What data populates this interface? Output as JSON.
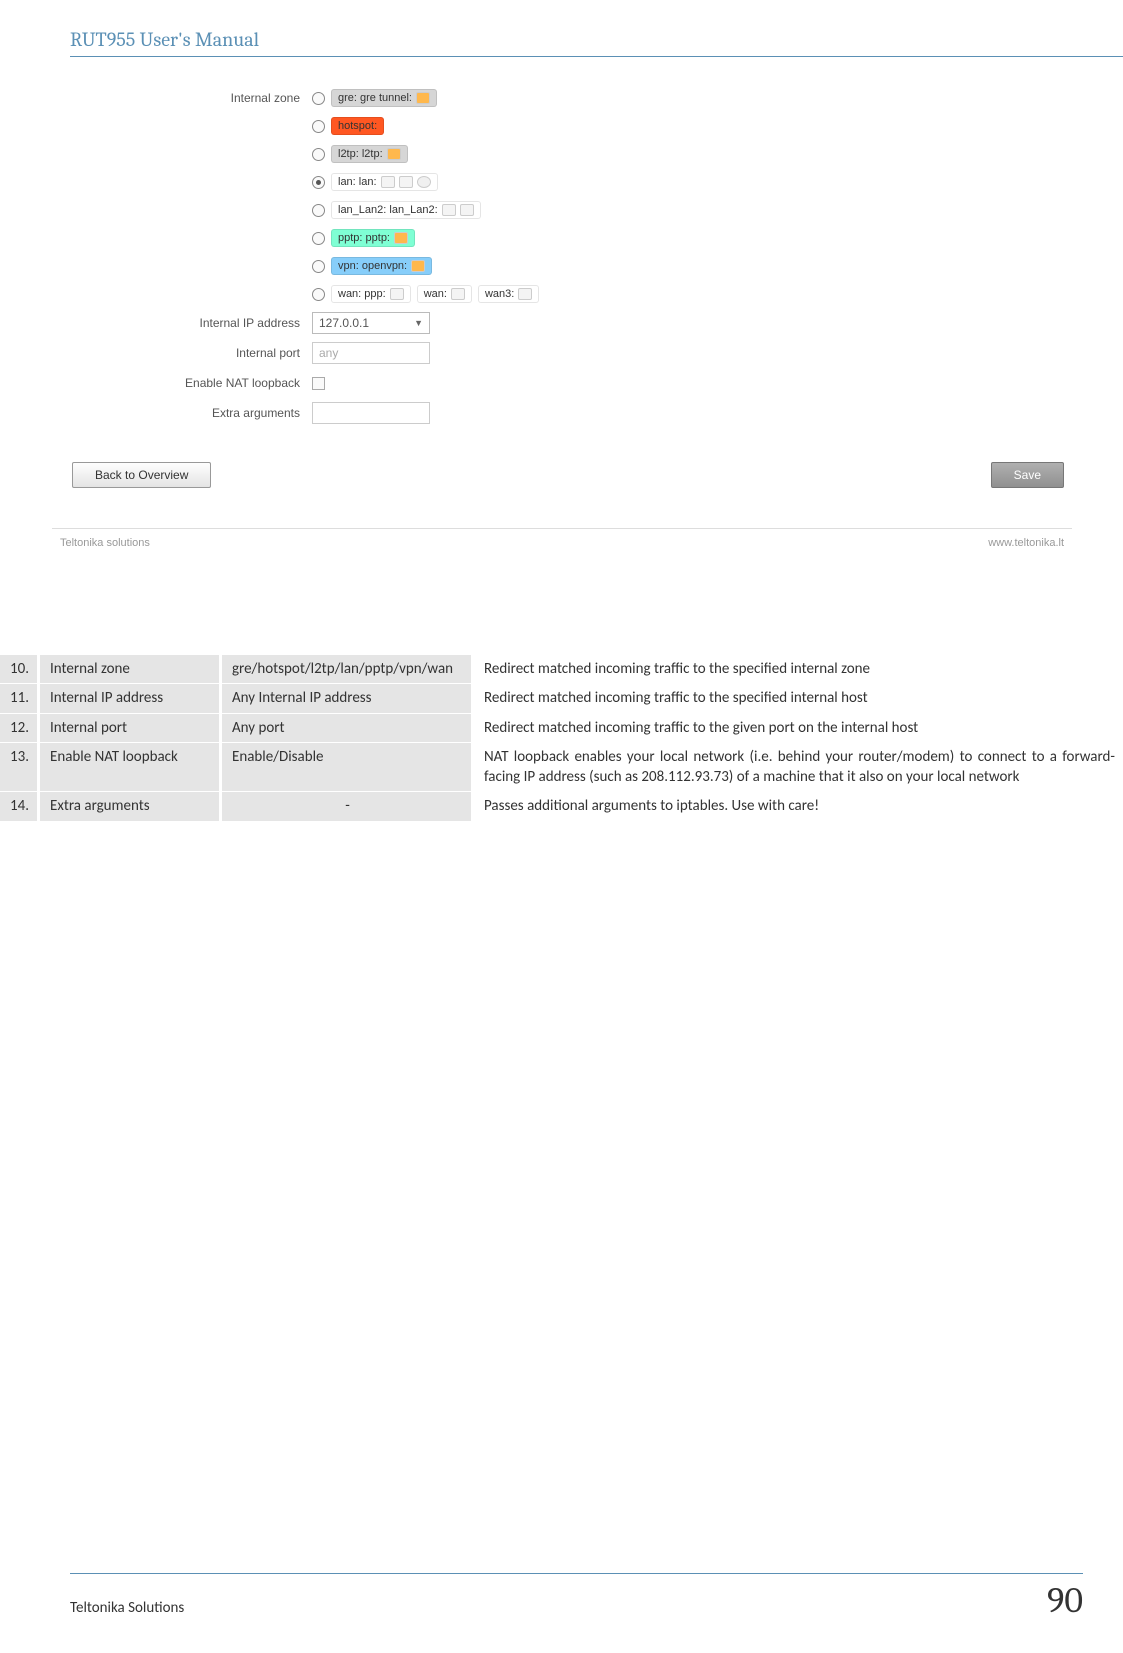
{
  "doc": {
    "header_title": "RUT955 User's Manual",
    "footer_left": "Teltonika Solutions",
    "footer_page": "90"
  },
  "form": {
    "internal_zone_label": "Internal zone",
    "zones": [
      {
        "label": "gre: gre tunnel:",
        "color": "#d6d6d6",
        "checked": false,
        "icons": [
          "lock"
        ]
      },
      {
        "label": "hotspot:",
        "color": "#ff5722",
        "checked": false,
        "icons": []
      },
      {
        "label": "l2tp: l2tp:",
        "color": "#d6d6d6",
        "checked": false,
        "icons": [
          "lock"
        ]
      },
      {
        "label": "lan: lan:",
        "color": "#ffffff",
        "checked": true,
        "icons": [
          "host",
          "host",
          "wave"
        ]
      },
      {
        "label": "lan_Lan2: lan_Lan2:",
        "color": "#ffffff",
        "checked": false,
        "icons": [
          "host",
          "host"
        ]
      },
      {
        "label": "pptp: pptp:",
        "color": "#7fffd4",
        "checked": false,
        "icons": [
          "lock"
        ]
      },
      {
        "label": "vpn: openvpn:",
        "color": "#87cefa",
        "checked": false,
        "icons": [
          "lock"
        ]
      },
      {
        "label": "wan: ppp:",
        "color": "#ffffff",
        "checked": false,
        "icons": [
          "host"
        ],
        "extra": [
          {
            "label": "wan:",
            "icons": [
              "host"
            ]
          },
          {
            "label": "wan3:",
            "icons": [
              "host"
            ]
          }
        ]
      }
    ],
    "internal_ip_label": "Internal IP address",
    "internal_ip_value": "127.0.0.1",
    "internal_port_label": "Internal port",
    "internal_port_placeholder": "any",
    "nat_loopback_label": "Enable NAT loopback",
    "extra_args_label": "Extra arguments",
    "back_btn": "Back to Overview",
    "save_btn": "Save",
    "footer_left": "Teltonika solutions",
    "footer_right": "www.teltonika.lt"
  },
  "table": {
    "rows": [
      {
        "n": "10.",
        "field": "Internal zone",
        "val": "gre/hotspot/l2tp/lan/pptp/vpn/wan",
        "desc": "Redirect matched incoming traffic to the specified internal zone",
        "center": false
      },
      {
        "n": "11.",
        "field": "Internal IP address",
        "val": "Any Internal IP address",
        "desc": "Redirect matched incoming traffic to the specified internal host",
        "center": false
      },
      {
        "n": "12.",
        "field": "Internal port",
        "val": "Any port",
        "desc": "Redirect matched incoming traffic to the given port on the internal host",
        "center": false
      },
      {
        "n": "13.",
        "field": "Enable NAT loopback",
        "val": "Enable/Disable",
        "desc": "NAT loopback enables your local network (i.e. behind your router/modem) to connect to a forward-facing IP address (such as 208.112.93.73) of a machine that it also on your local network",
        "center": false
      },
      {
        "n": "14.",
        "field": "Extra arguments",
        "val": "-",
        "desc": "Passes additional arguments to iptables. Use with care!",
        "center": true
      }
    ]
  }
}
